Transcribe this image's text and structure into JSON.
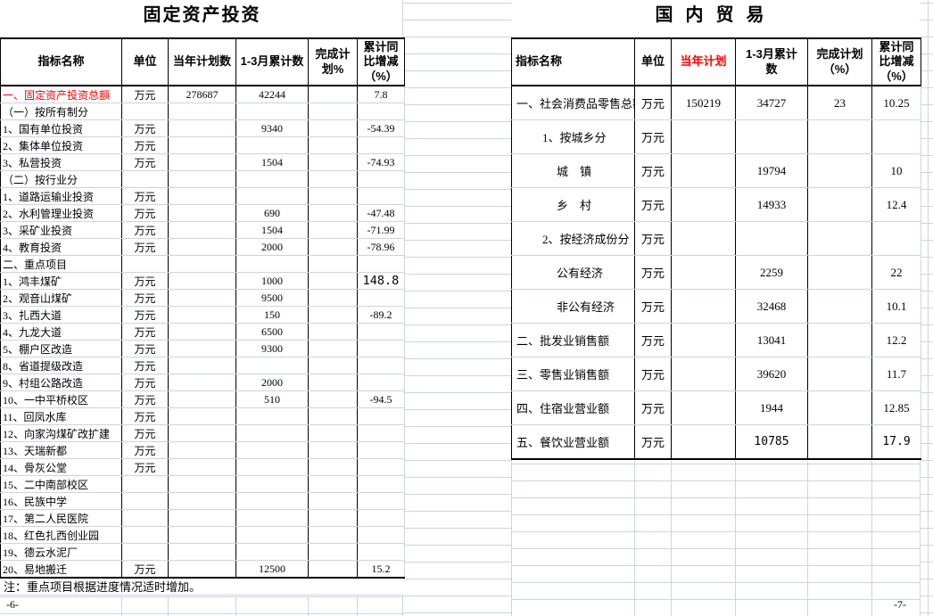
{
  "page": {
    "footer_left": "-6-",
    "footer_right": "-7-"
  },
  "colors": {
    "accent_red": "#ff0000",
    "gridline": "#ccd3e3",
    "border_black": "#000000"
  },
  "left_table": {
    "title": "固定资产投资",
    "headers": [
      "指标名称",
      "单位",
      "当年计划数",
      "1-3月累计数",
      "完成计划%",
      "累计同比增减（%）"
    ],
    "note": "注：重点项目根据进度情况适时增加。",
    "rows": [
      {
        "name": "一、固定资产投资总额",
        "unit": "万元",
        "plan": "278687",
        "cum": "42244",
        "pct": "",
        "yoy": "7.8",
        "red": true
      },
      {
        "name": "（一）按所有制分",
        "unit": "",
        "plan": "",
        "cum": "",
        "pct": "",
        "yoy": ""
      },
      {
        "name": "1、国有单位投资",
        "unit": "万元",
        "plan": "",
        "cum": "9340",
        "pct": "",
        "yoy": "-54.39"
      },
      {
        "name": "2、集体单位投资",
        "unit": "万元",
        "plan": "",
        "cum": "",
        "pct": "",
        "yoy": ""
      },
      {
        "name": "3、私营投资",
        "unit": "万元",
        "plan": "",
        "cum": "1504",
        "pct": "",
        "yoy": "-74.93"
      },
      {
        "name": "（二）按行业分",
        "unit": "",
        "plan": "",
        "cum": "",
        "pct": "",
        "yoy": ""
      },
      {
        "name": "1、道路运输业投资",
        "unit": "万元",
        "plan": "",
        "cum": "",
        "pct": "",
        "yoy": ""
      },
      {
        "name": "2、水利管理业投资",
        "unit": "万元",
        "plan": "",
        "cum": "690",
        "pct": "",
        "yoy": "-47.48"
      },
      {
        "name": "3、采矿业投资",
        "unit": "万元",
        "plan": "",
        "cum": "1504",
        "pct": "",
        "yoy": "-71.99"
      },
      {
        "name": "4、教育投资",
        "unit": "万元",
        "plan": "",
        "cum": "2000",
        "pct": "",
        "yoy": "-78.96"
      },
      {
        "name": "二、重点项目",
        "unit": "",
        "plan": "",
        "cum": "",
        "pct": "",
        "yoy": ""
      },
      {
        "name": "1、鸿丰煤矿",
        "unit": "万元",
        "plan": "",
        "cum": "1000",
        "pct": "",
        "yoy": "148.8",
        "yoy_alt": true
      },
      {
        "name": "2、观音山煤矿",
        "unit": "万元",
        "plan": "",
        "cum": "9500",
        "pct": "",
        "yoy": ""
      },
      {
        "name": "3、扎西大道",
        "unit": "万元",
        "plan": "",
        "cum": "150",
        "pct": "",
        "yoy": "-89.2"
      },
      {
        "name": "4、九龙大道",
        "unit": "万元",
        "plan": "",
        "cum": "6500",
        "pct": "",
        "yoy": ""
      },
      {
        "name": "5、棚户区改造",
        "unit": "万元",
        "plan": "",
        "cum": "9300",
        "pct": "",
        "yoy": ""
      },
      {
        "name": "8、省道提级改造",
        "unit": "万元",
        "plan": "",
        "cum": "",
        "pct": "",
        "yoy": ""
      },
      {
        "name": "9、村组公路改造",
        "unit": "万元",
        "plan": "",
        "cum": "2000",
        "pct": "",
        "yoy": ""
      },
      {
        "name": "10、一中平桥校区",
        "unit": "万元",
        "plan": "",
        "cum": "510",
        "pct": "",
        "yoy": "-94.5"
      },
      {
        "name": "11、回凤水库",
        "unit": "万元",
        "plan": "",
        "cum": "",
        "pct": "",
        "yoy": ""
      },
      {
        "name": "12、向家沟煤矿改扩建",
        "unit": "万元",
        "plan": "",
        "cum": "",
        "pct": "",
        "yoy": ""
      },
      {
        "name": "13、天瑞新都",
        "unit": "万元",
        "plan": "",
        "cum": "",
        "pct": "",
        "yoy": ""
      },
      {
        "name": "14、骨灰公堂",
        "unit": "万元",
        "plan": "",
        "cum": "",
        "pct": "",
        "yoy": ""
      },
      {
        "name": "15、二中南部校区",
        "unit": "",
        "plan": "",
        "cum": "",
        "pct": "",
        "yoy": ""
      },
      {
        "name": "16、民族中学",
        "unit": "",
        "plan": "",
        "cum": "",
        "pct": "",
        "yoy": ""
      },
      {
        "name": "17、第二人民医院",
        "unit": "",
        "plan": "",
        "cum": "",
        "pct": "",
        "yoy": ""
      },
      {
        "name": "18、红色扎西创业园",
        "unit": "",
        "plan": "",
        "cum": "",
        "pct": "",
        "yoy": ""
      },
      {
        "name": "19、德云水泥厂",
        "unit": "",
        "plan": "",
        "cum": "",
        "pct": "",
        "yoy": ""
      },
      {
        "name": "20、易地搬迁",
        "unit": "万元",
        "plan": "",
        "cum": "12500",
        "pct": "",
        "yoy": "15.2"
      }
    ]
  },
  "right_table": {
    "title": "国内贸易",
    "headers": [
      "指标名称",
      "单位",
      "当年计划",
      "1-3月累计数",
      "完成计划（%）",
      "累计同比增减（%）"
    ],
    "rows": [
      {
        "name": "一、社会消费品零售总额",
        "indent": 0,
        "unit": "万元",
        "plan": "150219",
        "cum": "34727",
        "pct": "23",
        "yoy": "10.25"
      },
      {
        "name": "1、按城乡分",
        "indent": 1,
        "unit": "万元",
        "plan": "",
        "cum": "",
        "pct": "",
        "yoy": ""
      },
      {
        "name": "城　镇",
        "indent": 2,
        "unit": "万元",
        "plan": "",
        "cum": "19794",
        "pct": "",
        "yoy": "10"
      },
      {
        "name": "乡　村",
        "indent": 2,
        "unit": "万元",
        "plan": "",
        "cum": "14933",
        "pct": "",
        "yoy": "12.4"
      },
      {
        "name": "2、按经济成份分",
        "indent": 1,
        "unit": "万元",
        "plan": "",
        "cum": "",
        "pct": "",
        "yoy": ""
      },
      {
        "name": "公有经济",
        "indent": 2,
        "unit": "万元",
        "plan": "",
        "cum": "2259",
        "pct": "",
        "yoy": "22"
      },
      {
        "name": "非公有经济",
        "indent": 2,
        "unit": "万元",
        "plan": "",
        "cum": "32468",
        "pct": "",
        "yoy": "10.1"
      },
      {
        "name": "二、批发业销售额",
        "indent": 0,
        "unit": "万元",
        "plan": "",
        "cum": "13041",
        "pct": "",
        "yoy": "12.2"
      },
      {
        "name": "三、零售业销售额",
        "indent": 0,
        "unit": "万元",
        "plan": "",
        "cum": "39620",
        "pct": "",
        "yoy": "11.7"
      },
      {
        "name": "四、住宿业营业额",
        "indent": 0,
        "unit": "万元",
        "plan": "",
        "cum": "1944",
        "pct": "",
        "yoy": "12.85"
      },
      {
        "name": "五、餐饮业营业额",
        "indent": 0,
        "unit": "万元",
        "plan": "",
        "cum": "10785",
        "pct": "",
        "yoy": "17.9",
        "alt": true
      }
    ]
  }
}
